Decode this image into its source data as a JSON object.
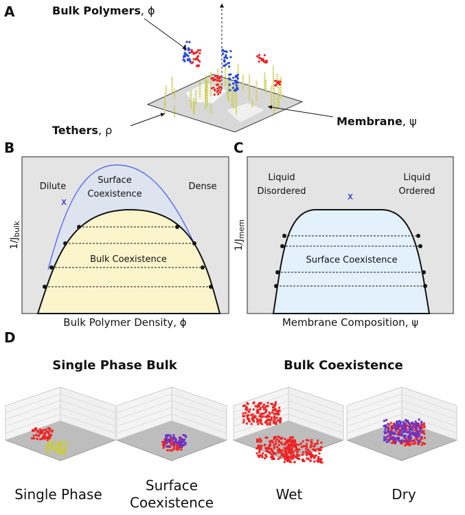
{
  "panels": {
    "a": {
      "letter": "A",
      "bulk": {
        "name": "Bulk Polymers",
        "suffix": ", ϕ"
      },
      "tethers": {
        "name": "Tethers",
        "suffix": ", ρ"
      },
      "membrane": {
        "name": "Membrane",
        "suffix": ", ψ"
      }
    },
    "b": {
      "letter": "B",
      "dilute": "Dilute",
      "surface": [
        "Surface",
        "Coexistence"
      ],
      "dense": "Dense",
      "marker": "x",
      "bulk_coex": "Bulk Coexistence",
      "ylabel": {
        "text": "1/J",
        "sub": "bulk"
      },
      "xlabel": "Bulk Polymer Density, ϕ"
    },
    "c": {
      "letter": "C",
      "disordered": [
        "Liquid",
        "Disordered"
      ],
      "ordered": [
        "Liquid",
        "Ordered"
      ],
      "marker": "x",
      "surface_coex": "Surface Coexistence",
      "ylabel": {
        "text": "1/J",
        "sub": "mem"
      },
      "xlabel": "Membrane Composition, ψ"
    },
    "d": {
      "letter": "D",
      "group1": "Single Phase Bulk",
      "group2": "Bulk Coexistence",
      "labels": [
        [
          "Single Phase"
        ],
        [
          "Surface",
          "Coexistence"
        ],
        [
          "Wet"
        ],
        [
          "Dry"
        ]
      ]
    }
  }
}
